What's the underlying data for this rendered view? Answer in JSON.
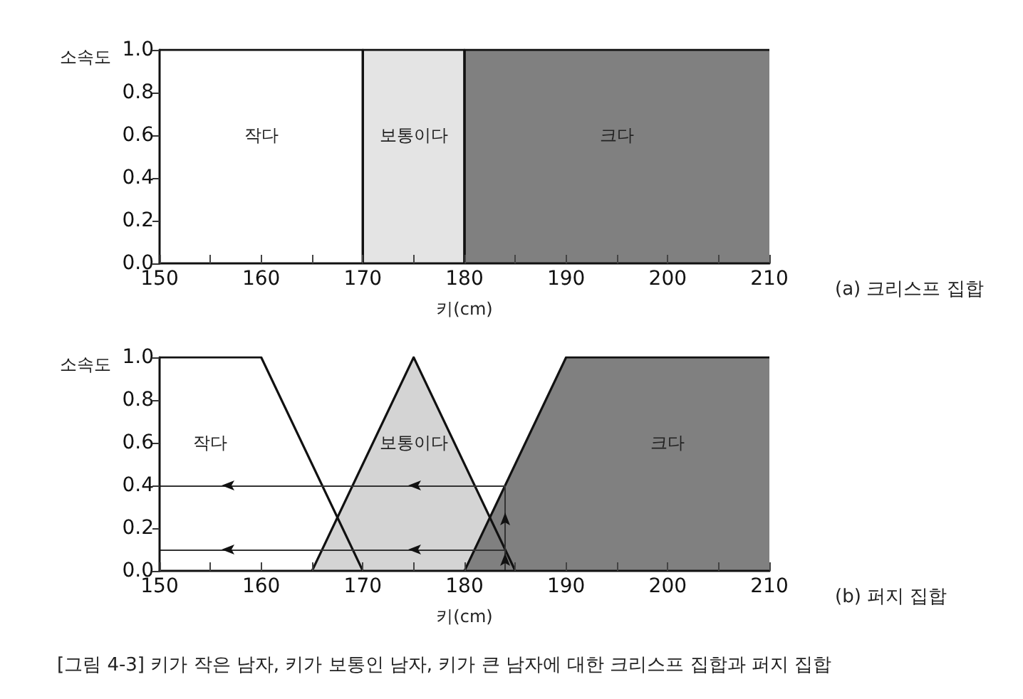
{
  "chart_data": [
    {
      "type": "area",
      "xlabel": "키(cm)",
      "ylabel": "소속도",
      "series": [
        {
          "name": "작다",
          "x": [
            150,
            170,
            170
          ],
          "values": [
            1,
            1,
            0
          ],
          "color": "#ffffff"
        },
        {
          "name": "보통이다",
          "x": [
            170,
            170,
            180,
            180
          ],
          "values": [
            0,
            1,
            1,
            0
          ],
          "color": "#e4e4e4"
        },
        {
          "name": "크다",
          "x": [
            180,
            180,
            210
          ],
          "values": [
            0,
            1,
            1
          ],
          "color": "#808080"
        }
      ],
      "annotations": [
        "(a) 크리스프 집합"
      ],
      "xlim": [
        150,
        210
      ],
      "xticks": [
        150,
        {
          "value": 155,
          "label": null
        },
        160,
        {
          "value": 165,
          "label": null
        },
        170,
        {
          "value": 175,
          "label": null
        },
        180,
        {
          "value": 185,
          "label": null
        },
        190,
        {
          "value": 195,
          "label": null
        },
        200,
        {
          "value": 205,
          "label": null
        },
        210
      ],
      "ylim": [
        0,
        1
      ],
      "yticks": [
        {
          "value": 0,
          "label": "0.0"
        },
        {
          "value": 0.2,
          "label": "0.2"
        },
        {
          "value": 0.4,
          "label": "0.4"
        },
        {
          "value": 0.6,
          "label": "0.6"
        },
        {
          "value": 0.8,
          "label": "0.8"
        },
        {
          "value": 1,
          "label": "1.0"
        }
      ],
      "grid": false
    },
    {
      "type": "area",
      "xlabel": "키(cm)",
      "ylabel": "소속도",
      "series": [
        {
          "name": "작다",
          "x": [
            150,
            160,
            170
          ],
          "values": [
            1,
            1,
            0
          ],
          "color": "#ffffff"
        },
        {
          "name": "보통이다",
          "x": [
            165,
            175,
            185
          ],
          "values": [
            0,
            1,
            0
          ],
          "color": "#d4d4d4"
        },
        {
          "name": "크다",
          "x": [
            180,
            190,
            210
          ],
          "values": [
            0,
            1,
            1
          ],
          "color": "#808080"
        }
      ],
      "annotations": [
        "(b) 퍼지 집합",
        "[그림 4-3] 키가 작은 남자, 키가 보통인 남자, 키가 큰 남자에 대한 크리스프 집합과 퍼지 집합"
      ],
      "ref_lines": [
        {
          "axis": "y",
          "value": 0.4
        },
        {
          "axis": "y",
          "value": 0.1
        },
        {
          "axis": "x",
          "value": 184
        }
      ],
      "xlim": [
        150,
        210
      ],
      "xticks": [
        150,
        {
          "value": 155,
          "label": null
        },
        160,
        {
          "value": 165,
          "label": null
        },
        170,
        {
          "value": 175,
          "label": null
        },
        180,
        {
          "value": 185,
          "label": null
        },
        190,
        {
          "value": 195,
          "label": null
        },
        200,
        {
          "value": 205,
          "label": null
        },
        210
      ],
      "ylim": [
        0,
        1
      ],
      "yticks": [
        {
          "value": 0,
          "label": "0.0"
        },
        {
          "value": 0.2,
          "label": "0.2"
        },
        {
          "value": 0.4,
          "label": "0.4"
        },
        {
          "value": 0.6,
          "label": "0.6"
        },
        {
          "value": 0.8,
          "label": "0.8"
        },
        {
          "value": 1,
          "label": "1.0"
        }
      ],
      "grid": false
    }
  ]
}
